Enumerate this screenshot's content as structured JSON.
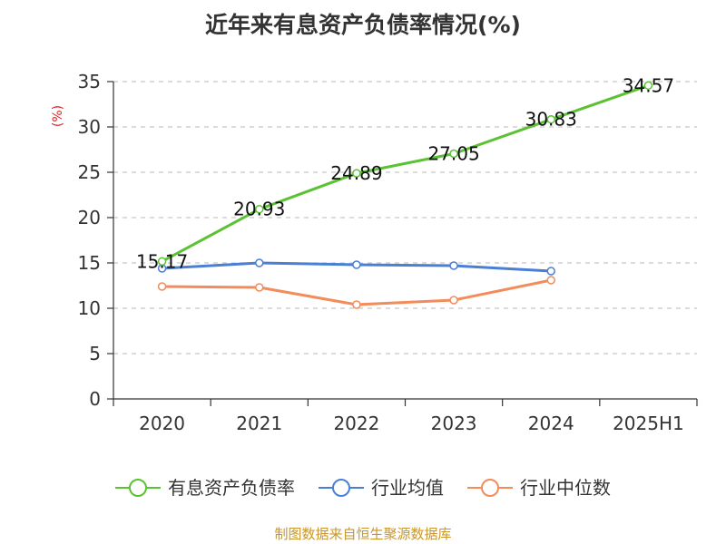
{
  "chart_data": {
    "type": "line",
    "title": "近年来有息资产负债率情况(%)",
    "ylabel": "(%)",
    "xlabel": "",
    "categories": [
      "2020",
      "2021",
      "2022",
      "2023",
      "2024",
      "2025H1"
    ],
    "ylim": [
      0,
      35
    ],
    "yticks": [
      0,
      5,
      10,
      15,
      20,
      25,
      30,
      35
    ],
    "grid": true,
    "legend_position": "bottom",
    "series": [
      {
        "name": "有息资产负债率",
        "color": "#5bc234",
        "values": [
          15.17,
          20.93,
          24.89,
          27.05,
          30.83,
          34.57
        ],
        "labels": [
          "15.17",
          "20.93",
          "24.89",
          "27.05",
          "30.83",
          "34.57"
        ]
      },
      {
        "name": "行业均值",
        "color": "#4a7fd6",
        "values": [
          14.4,
          15.0,
          14.8,
          14.7,
          14.1,
          null
        ]
      },
      {
        "name": "行业中位数",
        "color": "#f28c5a",
        "values": [
          12.4,
          12.3,
          10.4,
          10.9,
          13.1,
          null
        ]
      }
    ]
  },
  "source": "制图数据来自恒生聚源数据库"
}
